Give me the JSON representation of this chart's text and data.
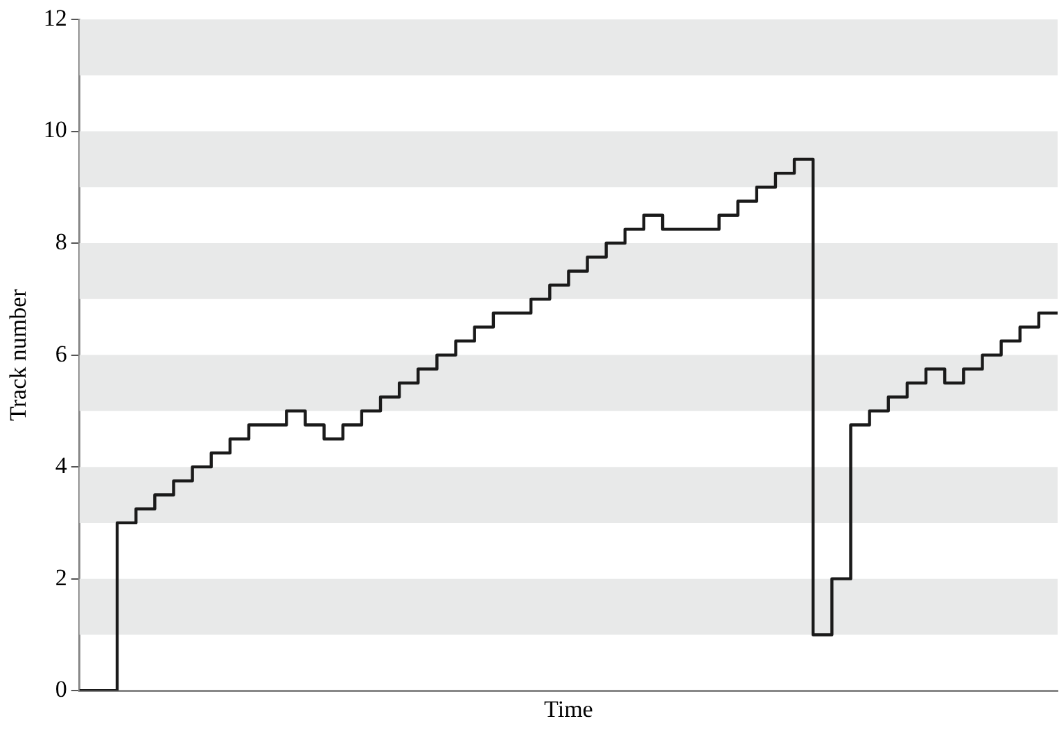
{
  "chart_data": {
    "type": "step",
    "xlabel": "Time",
    "ylabel": "Track number",
    "categories": [
      null,
      null,
      null,
      null,
      null,
      null,
      null,
      null,
      null,
      null,
      null,
      null,
      null,
      null,
      null,
      null,
      null,
      null,
      null,
      null,
      null,
      null,
      null,
      null,
      null,
      null,
      null,
      null,
      null,
      null,
      null,
      null,
      null,
      null,
      null,
      null,
      null,
      null,
      null,
      null,
      null,
      null,
      null,
      null,
      null,
      null,
      null,
      null,
      null,
      null,
      null,
      null,
      null
    ],
    "series": [
      {
        "color": "#1a1a1a",
        "values": [
          0,
          0,
          0,
          3,
          3.25,
          3.5,
          3.75,
          4,
          4.25,
          4.5,
          4.75,
          4.75,
          5,
          4.75,
          4.5,
          4.75,
          5,
          5.25,
          5.5,
          5.75,
          6,
          6.25,
          6.5,
          6.75,
          6.75,
          7,
          7.25,
          7.5,
          7.75,
          8,
          8.25,
          8.5,
          8.25,
          8.25,
          8.25,
          8.5,
          8.75,
          9,
          9.25,
          9.5,
          1,
          2,
          4.75,
          5,
          5.25,
          5.5,
          5.75,
          5.5,
          5.75,
          6,
          6.25,
          6.5,
          6.75
        ]
      }
    ],
    "ylim": [
      0,
      12
    ],
    "yticks": [
      0,
      2,
      4,
      6,
      8,
      10,
      12
    ],
    "bands": [
      {
        "axis": "y",
        "from": 1,
        "to": 2,
        "color": "#e8e9e9"
      },
      {
        "axis": "y",
        "from": 3,
        "to": 4,
        "color": "#e8e9e9"
      },
      {
        "axis": "y",
        "from": 5,
        "to": 6,
        "color": "#e8e9e9"
      },
      {
        "axis": "y",
        "from": 7,
        "to": 8,
        "color": "#e8e9e9"
      },
      {
        "axis": "y",
        "from": 9,
        "to": 10,
        "color": "#e8e9e9"
      },
      {
        "axis": "y",
        "from": 11,
        "to": 12,
        "color": "#e8e9e9"
      }
    ],
    "grid": false,
    "legend": false,
    "tick_labels": "y",
    "marker": "none",
    "line_style": "solid"
  }
}
